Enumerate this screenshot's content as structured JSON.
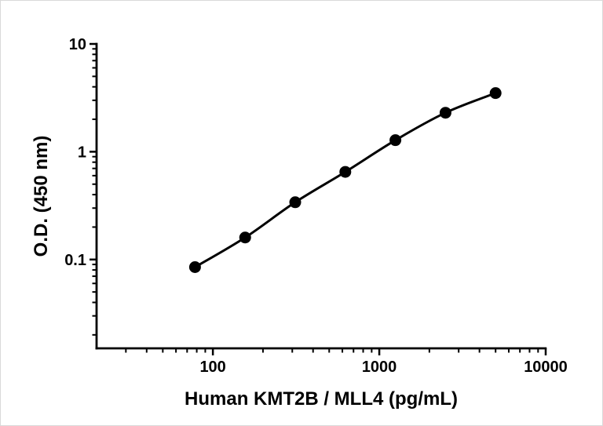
{
  "figure": {
    "background": "#ffffff",
    "border_color": "#d9d9d9"
  },
  "chart_data": {
    "type": "scatter",
    "title": "",
    "xlabel": "Human KMT2B / MLL4 (pg/mL)",
    "ylabel": "O.D. (450 nm)",
    "x_scale": "log",
    "y_scale": "log",
    "xlim": [
      20,
      10000
    ],
    "ylim": [
      0.015,
      10
    ],
    "x": [
      78.1,
      156.3,
      312.5,
      625,
      1250,
      2500,
      5000
    ],
    "y": [
      0.085,
      0.16,
      0.34,
      0.65,
      1.28,
      2.3,
      3.5
    ],
    "x_ticks": [
      {
        "value": 100,
        "label": "100"
      },
      {
        "value": 1000,
        "label": "1000"
      },
      {
        "value": 10000,
        "label": "10000"
      }
    ],
    "y_ticks": [
      {
        "value": 0.1,
        "label": "0.1"
      },
      {
        "value": 1,
        "label": "1"
      },
      {
        "value": 10,
        "label": "10"
      }
    ],
    "grid": false,
    "legend_position": "none",
    "axis_color": "#000000",
    "marker": {
      "shape": "circle",
      "color": "#000000",
      "radius": 7.5
    },
    "line": {
      "color": "#000000",
      "width": 3
    }
  }
}
